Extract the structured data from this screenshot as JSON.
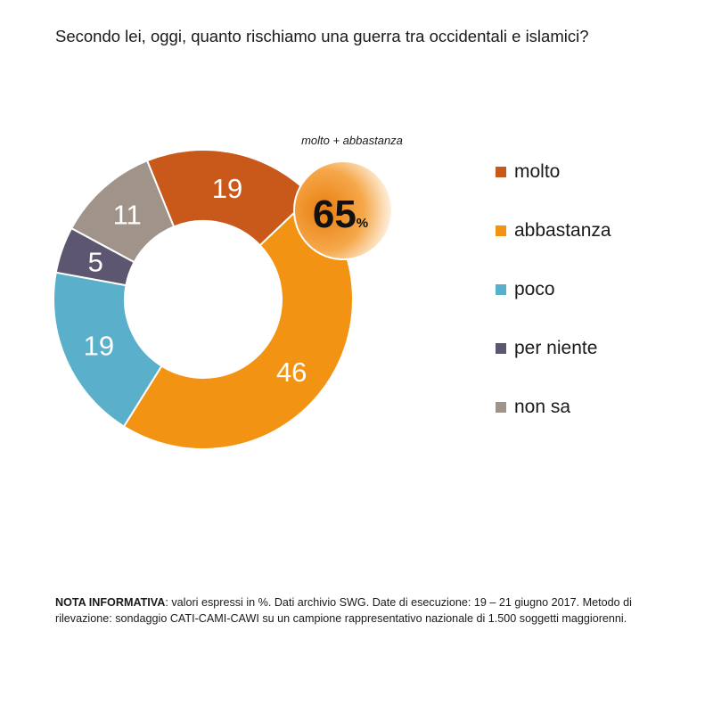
{
  "title": "Secondo lei, oggi, quanto rischiamo una guerra tra occidentali e islamici?",
  "highlight": {
    "label": "molto + abbastanza",
    "value": "65",
    "unit": "%"
  },
  "note": {
    "label": "NOTA INFORMATIVA",
    "text": ": valori espressi in %. Dati archivio SWG. Date di esecuzione: 19 – 21 giugno 2017. Metodo di rilevazione: sondaggio CATI-CAMI-CAWI su un campione rappresentativo nazionale di 1.500 soggetti maggiorenni."
  },
  "chart_data": {
    "type": "pie",
    "variant": "donut",
    "categories": [
      "molto",
      "abbastanza",
      "poco",
      "per niente",
      "non sa"
    ],
    "values": [
      19,
      46,
      19,
      5,
      11
    ],
    "colors": [
      "#C9591B",
      "#F39313",
      "#5AAFCB",
      "#5D5670",
      "#A0948A"
    ],
    "legend_position": "right",
    "data_labels": [
      "19",
      "46",
      "19",
      "5",
      "11"
    ],
    "start_angle_deg": -22
  }
}
